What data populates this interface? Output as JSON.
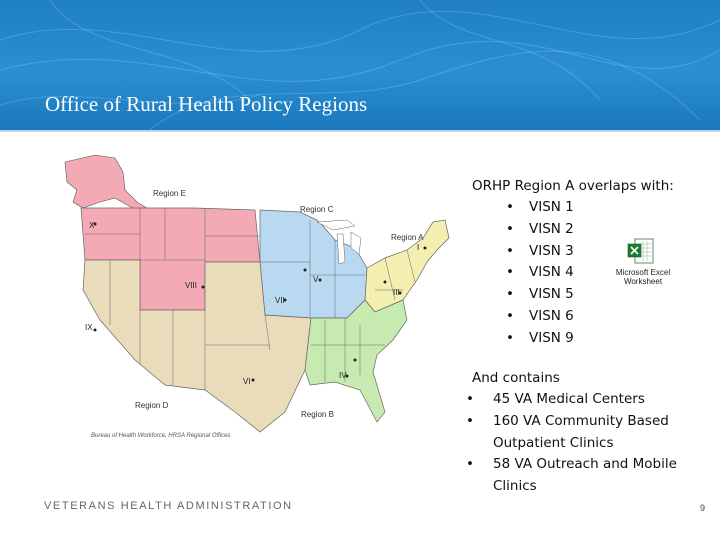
{
  "slide": {
    "title": "Office of Rural Health Policy Regions",
    "footer": "VETERANS HEALTH ADMINISTRATION",
    "page_number": "9"
  },
  "map": {
    "region_labels": [
      "Region E",
      "Region C",
      "Region A",
      "Region D",
      "Region B"
    ],
    "roman_labels": [
      "X",
      "V",
      "VIII",
      "VII",
      "III",
      "I",
      "IX",
      "VI",
      "IV"
    ],
    "caption": "Bureau of Health Workforce, HRSA Regional Offices",
    "region_colors": {
      "Region A": "#f3efb0",
      "Region B": "#c7eab0",
      "Region C": "#b9d9f0",
      "Region D": "#eadcba",
      "Region E": "#f4aab4"
    }
  },
  "text": {
    "intro": "ORHP Region A overlaps with:",
    "visn_items": [
      "VISN 1",
      "VISN 2",
      "VISN 3",
      "VISN 4",
      "VISN 5",
      "VISN 6",
      "VISN 9"
    ],
    "contains_heading": "And contains",
    "contains_items": [
      "45 VA Medical Centers",
      "160 VA Community Based Outpatient Clinics",
      "58 VA Outreach and Mobile Clinics"
    ],
    "bullet": "•"
  },
  "attachment": {
    "label_line1": "Microsoft Excel",
    "label_line2": "Worksheet",
    "icon": "excel-worksheet-icon"
  }
}
